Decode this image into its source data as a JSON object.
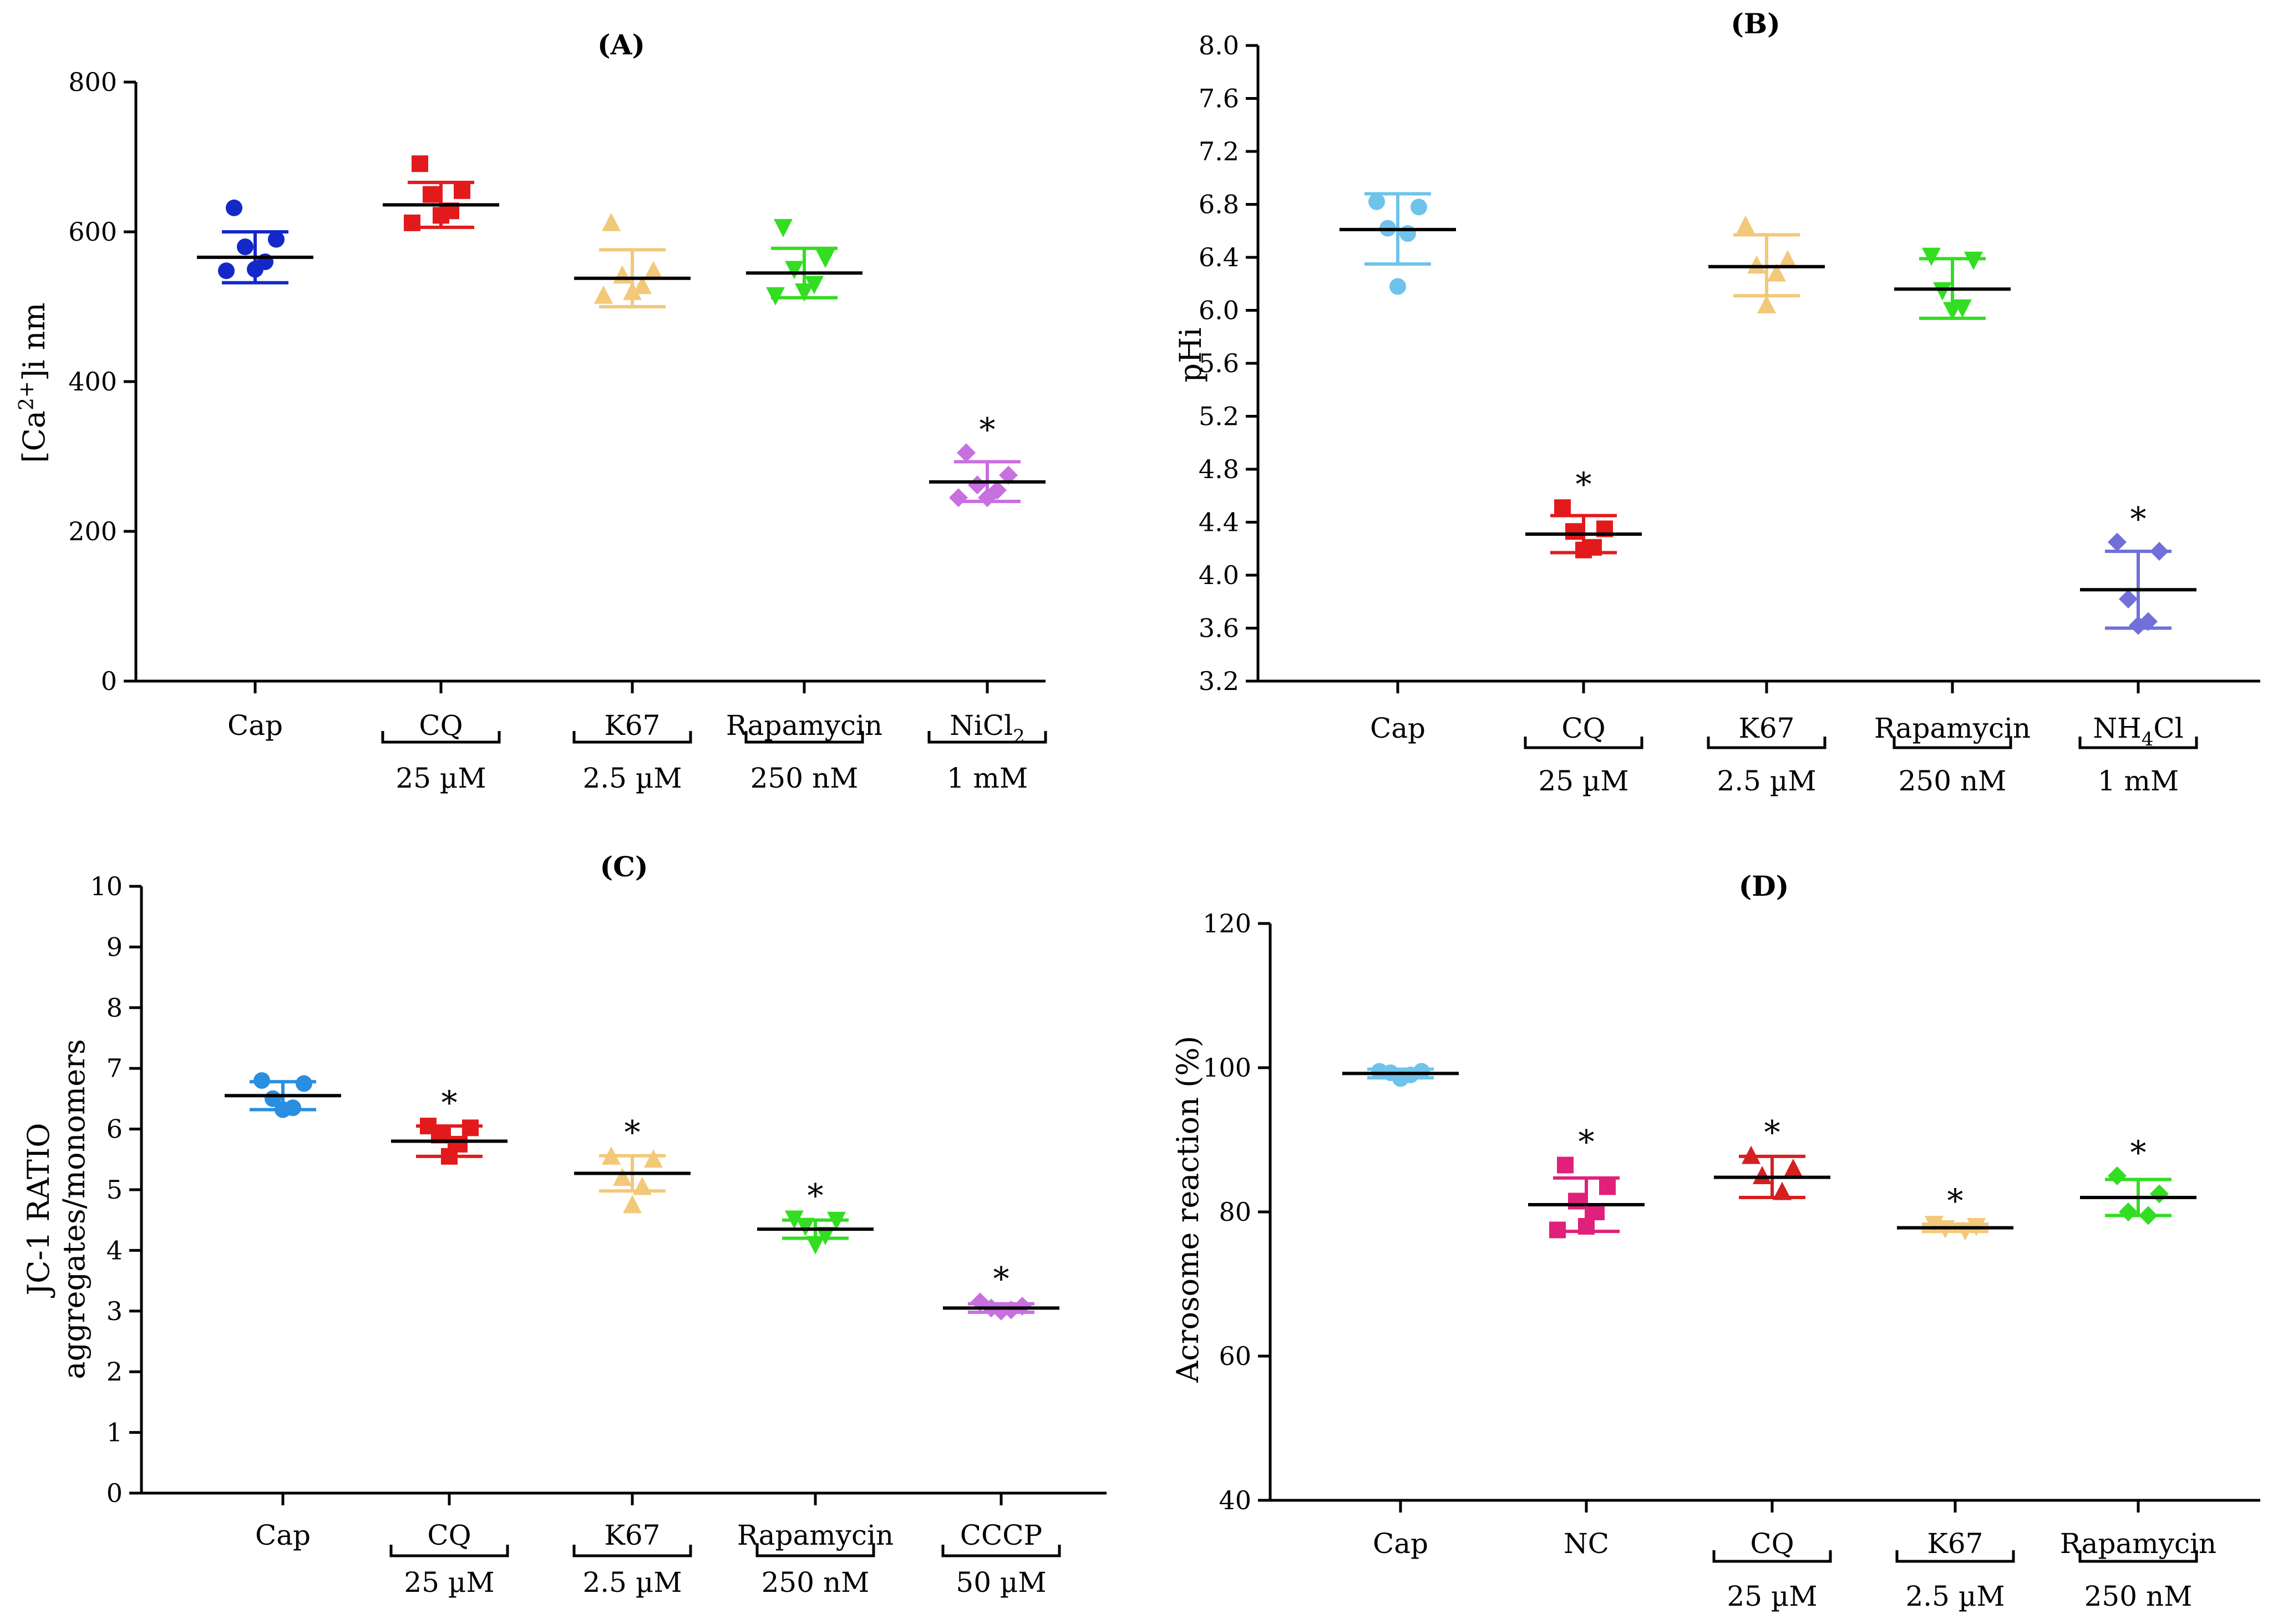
{
  "chart_data": [
    {
      "type": "scatter",
      "title": "(A)",
      "ylabel_parts": [
        "[Ca",
        "2+",
        "]i nm"
      ],
      "ylim": [
        0,
        800
      ],
      "yticks": [
        0,
        200,
        400,
        600,
        800
      ],
      "ytick_labels": [
        "0",
        "200",
        "400",
        "600",
        "800"
      ],
      "categories": [
        {
          "label": "Cap",
          "label_sub": "",
          "label_end": "",
          "concentration": "",
          "bracket": false,
          "color": "#1428c8",
          "marker": "circle",
          "mean": 566,
          "sd": [
            532,
            600
          ],
          "points": [
            632,
            590,
            580,
            560,
            550,
            548
          ],
          "star": false
        },
        {
          "label": "CQ",
          "label_sub": "",
          "label_end": "",
          "concentration": "25 µM",
          "bracket": true,
          "color": "#e31a1c",
          "marker": "square",
          "mean": 636,
          "sd": [
            606,
            666
          ],
          "points": [
            691,
            655,
            650,
            628,
            622,
            612
          ],
          "star": false
        },
        {
          "label": "K67",
          "label_sub": "",
          "label_end": "",
          "concentration": "2.5 µM",
          "bracket": true,
          "color": "#f2c879",
          "marker": "triangle",
          "mean": 538,
          "sd": [
            500,
            576
          ],
          "points": [
            612,
            548,
            542,
            528,
            520,
            515
          ],
          "star": false
        },
        {
          "label": "Rapamycin",
          "label_sub": "",
          "label_end": "",
          "concentration": "250 nM",
          "bracket": true,
          "color": "#33dd22",
          "marker": "triangle-down",
          "mean": 545,
          "sd": [
            512,
            578
          ],
          "points": [
            606,
            565,
            550,
            530,
            520,
            515
          ],
          "star": false
        },
        {
          "label": "NiCl",
          "label_sub": "2",
          "label_end": "",
          "concentration": "1 mM",
          "bracket": true,
          "color": "#c870e0",
          "marker": "diamond",
          "mean": 266,
          "sd": [
            240,
            293
          ],
          "points": [
            305,
            275,
            262,
            255,
            245,
            245
          ],
          "star": true
        }
      ]
    },
    {
      "type": "scatter",
      "title": "(B)",
      "ylabel_parts": [
        "pHi"
      ],
      "ylim": [
        3.2,
        8.0
      ],
      "yticks": [
        3.2,
        3.6,
        4.0,
        4.4,
        4.8,
        5.2,
        5.6,
        6.0,
        6.4,
        6.8,
        7.2,
        7.6,
        8.0
      ],
      "ytick_labels": [
        "3.2",
        "3.6",
        "4.0",
        "4.4",
        "4.8",
        "5.2",
        "5.6",
        "6.0",
        "6.4",
        "6.8",
        "7.2",
        "7.6",
        "8.0"
      ],
      "categories": [
        {
          "label": "Cap",
          "label_sub": "",
          "label_end": "",
          "concentration": "",
          "bracket": false,
          "color": "#6fc3ea",
          "marker": "circle",
          "mean": 6.61,
          "sd": [
            6.35,
            6.88
          ],
          "points": [
            6.82,
            6.78,
            6.62,
            6.58,
            6.18
          ],
          "star": false
        },
        {
          "label": "CQ",
          "label_sub": "",
          "label_end": "",
          "concentration": "25 µM",
          "bracket": true,
          "color": "#e31a1c",
          "marker": "square",
          "mean": 4.31,
          "sd": [
            4.17,
            4.45
          ],
          "points": [
            4.51,
            4.35,
            4.33,
            4.21,
            4.19
          ],
          "star": true
        },
        {
          "label": "K67",
          "label_sub": "",
          "label_end": "",
          "concentration": "2.5 µM",
          "bracket": true,
          "color": "#f2c879",
          "marker": "triangle",
          "mean": 6.33,
          "sd": [
            6.11,
            6.57
          ],
          "points": [
            6.64,
            6.38,
            6.34,
            6.28,
            6.04
          ],
          "star": false
        },
        {
          "label": "Rapamycin",
          "label_sub": "",
          "label_end": "",
          "concentration": "250 nM",
          "bracket": true,
          "color": "#33dd22",
          "marker": "triangle-down",
          "mean": 6.16,
          "sd": [
            5.94,
            6.39
          ],
          "points": [
            6.41,
            6.38,
            6.15,
            6.02,
            6.0
          ],
          "star": false
        },
        {
          "label": "NH",
          "label_sub": "4",
          "label_end": "Cl",
          "concentration": "1 mM",
          "bracket": true,
          "color": "#7070d8",
          "marker": "diamond",
          "mean": 3.89,
          "sd": [
            3.6,
            4.18
          ],
          "points": [
            4.25,
            4.18,
            3.82,
            3.65,
            3.62
          ],
          "star": true
        }
      ]
    },
    {
      "type": "scatter",
      "title": "(C)",
      "ylabel_parts": [
        "JC-1 RATIO",
        "aggregates/monomers"
      ],
      "ylim": [
        0,
        10
      ],
      "yticks": [
        0,
        1,
        2,
        3,
        4,
        5,
        6,
        7,
        8,
        9,
        10
      ],
      "ytick_labels": [
        "0",
        "1",
        "2",
        "3",
        "4",
        "5",
        "6",
        "7",
        "8",
        "9",
        "10"
      ],
      "categories": [
        {
          "label": "Cap",
          "label_sub": "",
          "label_end": "",
          "concentration": "",
          "bracket": false,
          "color": "#2a8ee0",
          "marker": "circle",
          "mean": 6.55,
          "sd": [
            6.32,
            6.78
          ],
          "points": [
            6.8,
            6.75,
            6.5,
            6.35,
            6.32
          ],
          "star": false
        },
        {
          "label": "CQ",
          "label_sub": "",
          "label_end": "",
          "concentration": "25 µM",
          "bracket": true,
          "color": "#e31a1c",
          "marker": "square",
          "mean": 5.8,
          "sd": [
            5.55,
            6.05
          ],
          "points": [
            6.05,
            6.02,
            5.9,
            5.75,
            5.55
          ],
          "star": true
        },
        {
          "label": "K67",
          "label_sub": "",
          "label_end": "",
          "concentration": "2.5 µM",
          "bracket": true,
          "color": "#f2c879",
          "marker": "triangle",
          "mean": 5.27,
          "sd": [
            4.98,
            5.56
          ],
          "points": [
            5.55,
            5.5,
            5.2,
            5.05,
            4.75
          ],
          "star": true
        },
        {
          "label": "Rapamycin",
          "label_sub": "",
          "label_end": "",
          "concentration": "250 nM",
          "bracket": true,
          "color": "#33dd22",
          "marker": "triangle-down",
          "mean": 4.35,
          "sd": [
            4.2,
            4.5
          ],
          "points": [
            4.52,
            4.5,
            4.4,
            4.25,
            4.1
          ],
          "star": true
        },
        {
          "label": "CCCP",
          "label_sub": "",
          "label_end": "",
          "concentration": "50 µM",
          "bracket": true,
          "color": "#c870e0",
          "marker": "diamond",
          "mean": 3.05,
          "sd": [
            2.98,
            3.12
          ],
          "points": [
            3.15,
            3.08,
            3.05,
            3.02,
            3.0
          ],
          "star": true
        }
      ]
    },
    {
      "type": "scatter",
      "title": "(D)",
      "ylabel_parts": [
        "Acrosome reaction (%)"
      ],
      "ylim": [
        40,
        120
      ],
      "yticks": [
        40,
        60,
        80,
        100,
        120
      ],
      "ytick_labels": [
        "40",
        "60",
        "80",
        "100",
        "120"
      ],
      "categories": [
        {
          "label": "Cap",
          "label_sub": "",
          "label_end": "",
          "concentration": "",
          "bracket": false,
          "color": "#6fc3ea",
          "marker": "circle",
          "mean": 99.2,
          "sd": [
            98.6,
            99.8
          ],
          "points": [
            99.5,
            99.5,
            99.3,
            99.0,
            98.5
          ],
          "star": false
        },
        {
          "label": "NC",
          "label_sub": "",
          "label_end": "",
          "concentration": "",
          "bracket": false,
          "color": "#e0207a",
          "marker": "square",
          "mean": 81,
          "sd": [
            77.3,
            84.7
          ],
          "points": [
            86.5,
            83.5,
            81.5,
            80,
            78,
            77.5
          ],
          "star": true
        },
        {
          "label": "CQ",
          "label_sub": "",
          "label_end": "",
          "concentration": "25 µM",
          "bracket": true,
          "color": "#d42020",
          "marker": "triangle",
          "mean": 84.8,
          "sd": [
            82,
            87.7
          ],
          "points": [
            87.8,
            86,
            85,
            82.8
          ],
          "star": true
        },
        {
          "label": "K67",
          "label_sub": "",
          "label_end": "",
          "concentration": "2.5 µM",
          "bracket": true,
          "color": "#f2c879",
          "marker": "triangle-down",
          "mean": 77.8,
          "sd": [
            77.3,
            78.3
          ],
          "points": [
            78.3,
            78.0,
            77.7,
            77.4
          ],
          "star": true
        },
        {
          "label": "Rapamycin",
          "label_sub": "",
          "label_end": "",
          "concentration": "250 nM",
          "bracket": true,
          "color": "#33dd22",
          "marker": "diamond",
          "mean": 82,
          "sd": [
            79.5,
            84.5
          ],
          "points": [
            85,
            82.5,
            80,
            79.5
          ],
          "star": true
        }
      ]
    }
  ]
}
